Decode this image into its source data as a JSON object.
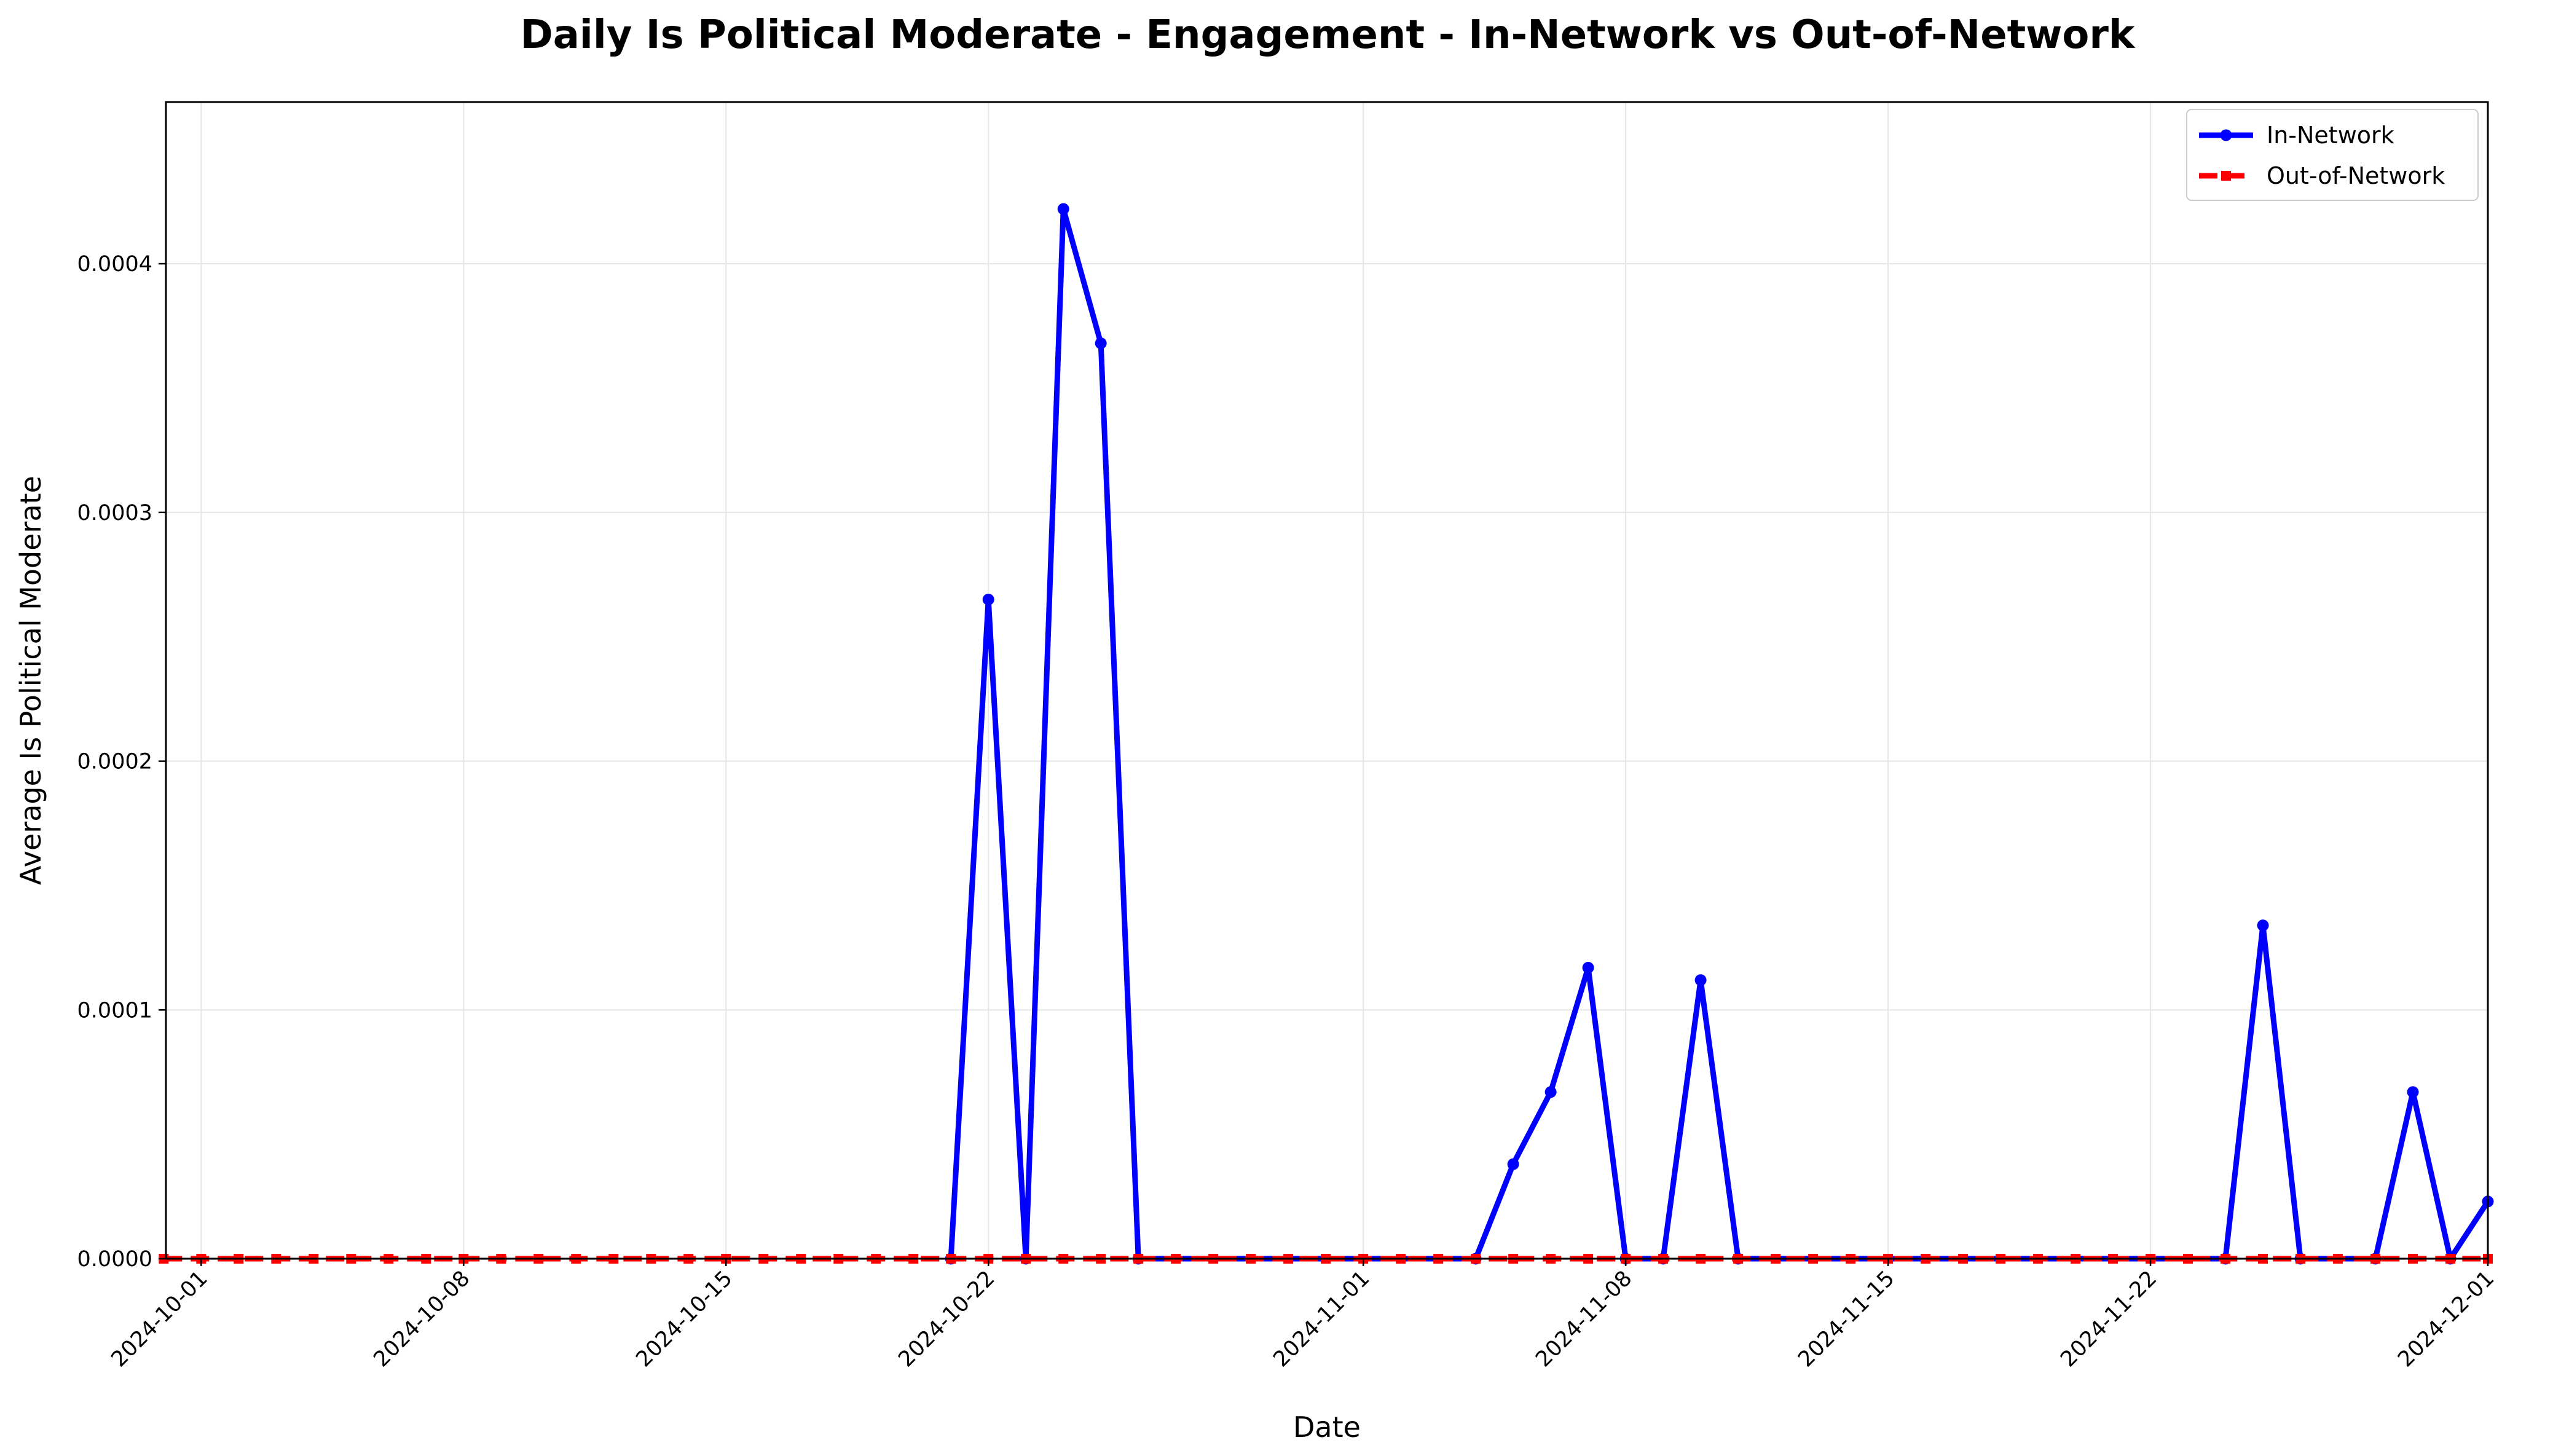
{
  "chart_data": {
    "type": "line",
    "title": "Daily Is Political Moderate - Engagement - In-Network vs Out-of-Network",
    "xlabel": "Date",
    "ylabel": "Average Is Political Moderate",
    "xlim": [
      "2024-09-30",
      "2024-12-01"
    ],
    "ylim": [
      0,
      0.000465
    ],
    "grid": true,
    "legend_position": "top-right",
    "x_ticks": [
      "2024-10-01",
      "2024-10-08",
      "2024-10-15",
      "2024-10-22",
      "2024-11-01",
      "2024-11-08",
      "2024-11-15",
      "2024-11-22",
      "2024-12-01"
    ],
    "y_ticks": [
      "0.0000",
      "0.0001",
      "0.0002",
      "0.0003",
      "0.0004"
    ],
    "y_tick_values": [
      0,
      0.0001,
      0.0002,
      0.0003,
      0.0004
    ],
    "series": [
      {
        "name": "In-Network",
        "color": "#0000ff",
        "style": "solid",
        "marker": "circle",
        "points": [
          [
            "2024-10-21",
            0
          ],
          [
            "2024-10-22",
            0.000265
          ],
          [
            "2024-10-23",
            0
          ],
          [
            "2024-10-24",
            0.000422
          ],
          [
            "2024-10-25",
            0.000368
          ],
          [
            "2024-10-26",
            0
          ],
          [
            "2024-11-04",
            0
          ],
          [
            "2024-11-05",
            3.8e-05
          ],
          [
            "2024-11-06",
            6.7e-05
          ],
          [
            "2024-11-07",
            0.000117
          ],
          [
            "2024-11-08",
            0
          ],
          [
            "2024-11-09",
            0
          ],
          [
            "2024-11-10",
            0.000112
          ],
          [
            "2024-11-11",
            0
          ],
          [
            "2024-11-24",
            0
          ],
          [
            "2024-11-25",
            0.000134
          ],
          [
            "2024-11-26",
            0
          ],
          [
            "2024-11-28",
            0
          ],
          [
            "2024-11-29",
            6.7e-05
          ],
          [
            "2024-11-30",
            0
          ],
          [
            "2024-12-01",
            2.3e-05
          ]
        ]
      },
      {
        "name": "Out-of-Network",
        "color": "#ff0000",
        "style": "dashed",
        "marker": "square",
        "points": [
          [
            "2024-09-30",
            0
          ],
          [
            "2024-10-01",
            0
          ],
          [
            "2024-10-02",
            0
          ],
          [
            "2024-10-03",
            0
          ],
          [
            "2024-10-04",
            0
          ],
          [
            "2024-10-05",
            0
          ],
          [
            "2024-10-06",
            0
          ],
          [
            "2024-10-07",
            0
          ],
          [
            "2024-10-08",
            0
          ],
          [
            "2024-10-09",
            0
          ],
          [
            "2024-10-10",
            0
          ],
          [
            "2024-10-11",
            0
          ],
          [
            "2024-10-12",
            0
          ],
          [
            "2024-10-13",
            0
          ],
          [
            "2024-10-14",
            0
          ],
          [
            "2024-10-15",
            0
          ],
          [
            "2024-10-16",
            0
          ],
          [
            "2024-10-17",
            0
          ],
          [
            "2024-10-18",
            0
          ],
          [
            "2024-10-19",
            0
          ],
          [
            "2024-10-20",
            0
          ],
          [
            "2024-10-21",
            0
          ],
          [
            "2024-10-22",
            0
          ],
          [
            "2024-10-23",
            0
          ],
          [
            "2024-10-24",
            0
          ],
          [
            "2024-10-25",
            0
          ],
          [
            "2024-10-26",
            0
          ],
          [
            "2024-10-27",
            0
          ],
          [
            "2024-10-28",
            0
          ],
          [
            "2024-10-29",
            0
          ],
          [
            "2024-10-30",
            0
          ],
          [
            "2024-10-31",
            0
          ],
          [
            "2024-11-01",
            0
          ],
          [
            "2024-11-02",
            0
          ],
          [
            "2024-11-03",
            0
          ],
          [
            "2024-11-04",
            0
          ],
          [
            "2024-11-05",
            0
          ],
          [
            "2024-11-06",
            0
          ],
          [
            "2024-11-07",
            0
          ],
          [
            "2024-11-08",
            0
          ],
          [
            "2024-11-09",
            0
          ],
          [
            "2024-11-10",
            0
          ],
          [
            "2024-11-11",
            0
          ],
          [
            "2024-11-12",
            0
          ],
          [
            "2024-11-13",
            0
          ],
          [
            "2024-11-14",
            0
          ],
          [
            "2024-11-15",
            0
          ],
          [
            "2024-11-16",
            0
          ],
          [
            "2024-11-17",
            0
          ],
          [
            "2024-11-18",
            0
          ],
          [
            "2024-11-19",
            0
          ],
          [
            "2024-11-20",
            0
          ],
          [
            "2024-11-21",
            0
          ],
          [
            "2024-11-22",
            0
          ],
          [
            "2024-11-23",
            0
          ],
          [
            "2024-11-24",
            0
          ],
          [
            "2024-11-25",
            0
          ],
          [
            "2024-11-26",
            0
          ],
          [
            "2024-11-27",
            0
          ],
          [
            "2024-11-28",
            0
          ],
          [
            "2024-11-29",
            0
          ],
          [
            "2024-11-30",
            0
          ],
          [
            "2024-12-01",
            0
          ]
        ]
      }
    ]
  }
}
